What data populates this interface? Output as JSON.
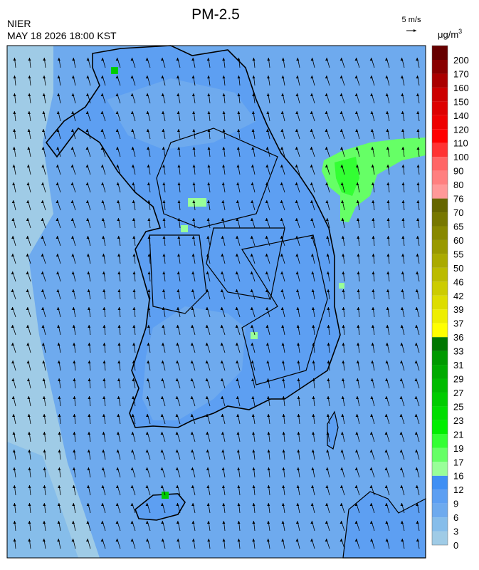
{
  "header": {
    "title": "PM-2.5",
    "agency": "NIER",
    "timestamp": "MAY 18 2026 18:00 KST",
    "wind_scale": "5 m/s"
  },
  "legend": {
    "unit": "μg/m",
    "unit_sup": "3",
    "labels": [
      0,
      3,
      6,
      9,
      12,
      16,
      17,
      19,
      21,
      23,
      25,
      27,
      29,
      31,
      33,
      36,
      37,
      39,
      42,
      46,
      50,
      55,
      60,
      65,
      70,
      76,
      80,
      90,
      100,
      110,
      120,
      140,
      150,
      160,
      170,
      200
    ],
    "colors": [
      "#9fcbe6",
      "#86bdea",
      "#6eaaee",
      "#5d9ff2",
      "#3f8ff4",
      "#99ff99",
      "#66ff66",
      "#33ff33",
      "#00ee00",
      "#00dd00",
      "#00cc00",
      "#00bb00",
      "#00aa00",
      "#009900",
      "#007700",
      "#ffff00",
      "#eeee00",
      "#dddd00",
      "#cccc00",
      "#bbbb00",
      "#aaaa00",
      "#999900",
      "#888800",
      "#777700",
      "#666600",
      "#ff9999",
      "#ff8080",
      "#ff6666",
      "#ff3333",
      "#ff0000",
      "#ee0000",
      "#dd0000",
      "#cc0000",
      "#aa0000",
      "#880000",
      "#660000"
    ]
  }
}
